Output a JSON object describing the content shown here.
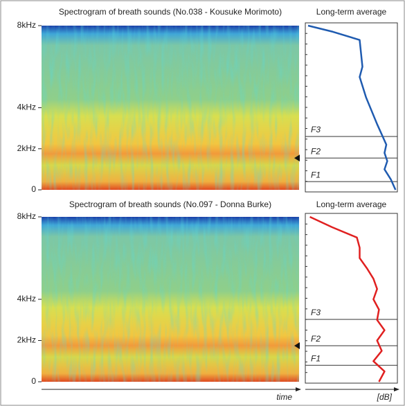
{
  "chart_data": [
    {
      "type": "spectrogram",
      "title": "Spectrogram of breath sounds (No.038 - Kousuke Morimoto)",
      "ylim": [
        0,
        8000
      ],
      "yticks": [
        0,
        {
          "value": 2000,
          "label": "2kHz"
        },
        {
          "value": 4000,
          "label": "4kHz"
        },
        {
          "value": 8000,
          "label": "8kHz"
        }
      ]
    },
    {
      "type": "line",
      "title": "Long-term average",
      "color": "#1f5bb0",
      "xlim": [
        0,
        100
      ],
      "ylim": [
        0,
        8000
      ],
      "frequencies": [
        0,
        500,
        1000,
        1400,
        1800,
        2200,
        2800,
        3200,
        4500,
        5500,
        6000,
        7300,
        7700,
        8000
      ],
      "values": [
        98,
        93,
        86,
        89,
        86,
        88,
        82,
        78,
        66,
        59,
        62,
        59,
        30,
        3
      ],
      "formants": [
        {
          "label": "F1",
          "value": 400
        },
        {
          "label": "F2",
          "value": 1550
        },
        {
          "label": "F3",
          "value": 2600
        }
      ]
    },
    {
      "type": "spectrogram",
      "title": "Spectrogram of breath sounds (No.097 - Donna Burke)",
      "xlabel": "time",
      "ylim": [
        0,
        8000
      ],
      "yticks": [
        0,
        {
          "value": 2000,
          "label": "2kHz"
        },
        {
          "value": 4000,
          "label": "4kHz"
        },
        {
          "value": 8000,
          "label": "8kHz"
        }
      ]
    },
    {
      "type": "line",
      "title": "Long-term average",
      "color": "#e02020",
      "xlabel": "[dB]",
      "xlim": [
        0,
        100
      ],
      "ylim": [
        0,
        8000
      ],
      "frequencies": [
        0,
        500,
        1000,
        1500,
        2000,
        2500,
        3000,
        3500,
        4000,
        4500,
        5000,
        5500,
        6000,
        6500,
        7000,
        7500,
        8000
      ],
      "values": [
        80,
        86,
        74,
        83,
        78,
        86,
        78,
        80,
        74,
        78,
        74,
        67,
        59,
        59,
        56,
        29,
        5
      ],
      "formants": [
        {
          "label": "F1",
          "value": 800
        },
        {
          "label": "F2",
          "value": 1750
        },
        {
          "label": "F3",
          "value": 3025
        }
      ]
    }
  ]
}
